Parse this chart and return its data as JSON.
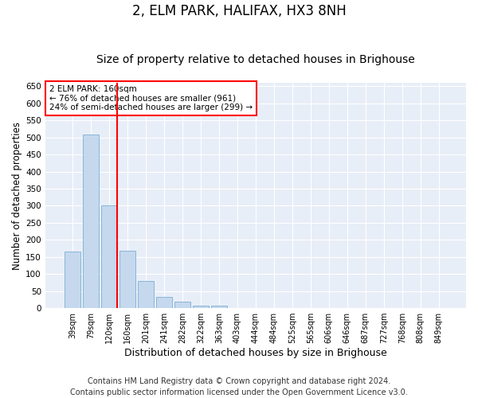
{
  "title": "2, ELM PARK, HALIFAX, HX3 8NH",
  "subtitle": "Size of property relative to detached houses in Brighouse",
  "xlabel": "Distribution of detached houses by size in Brighouse",
  "ylabel": "Number of detached properties",
  "categories": [
    "39sqm",
    "79sqm",
    "120sqm",
    "160sqm",
    "201sqm",
    "241sqm",
    "282sqm",
    "322sqm",
    "363sqm",
    "403sqm",
    "444sqm",
    "484sqm",
    "525sqm",
    "565sqm",
    "606sqm",
    "646sqm",
    "687sqm",
    "727sqm",
    "768sqm",
    "808sqm",
    "849sqm"
  ],
  "values": [
    165,
    508,
    302,
    168,
    79,
    32,
    20,
    8,
    8,
    0,
    0,
    0,
    0,
    0,
    0,
    0,
    0,
    0,
    0,
    0,
    0
  ],
  "bar_color": "#c5d8ee",
  "bar_edge_color": "#7bafd4",
  "vline_color": "red",
  "annotation_text": "2 ELM PARK: 160sqm\n← 76% of detached houses are smaller (961)\n24% of semi-detached houses are larger (299) →",
  "annotation_box_color": "white",
  "annotation_box_edge_color": "red",
  "ylim": [
    0,
    660
  ],
  "yticks": [
    0,
    50,
    100,
    150,
    200,
    250,
    300,
    350,
    400,
    450,
    500,
    550,
    600,
    650
  ],
  "plot_bg_color": "#e8eef7",
  "footer_text": "Contains HM Land Registry data © Crown copyright and database right 2024.\nContains public sector information licensed under the Open Government Licence v3.0.",
  "title_fontsize": 12,
  "subtitle_fontsize": 10,
  "xlabel_fontsize": 9,
  "ylabel_fontsize": 8.5,
  "footer_fontsize": 7
}
